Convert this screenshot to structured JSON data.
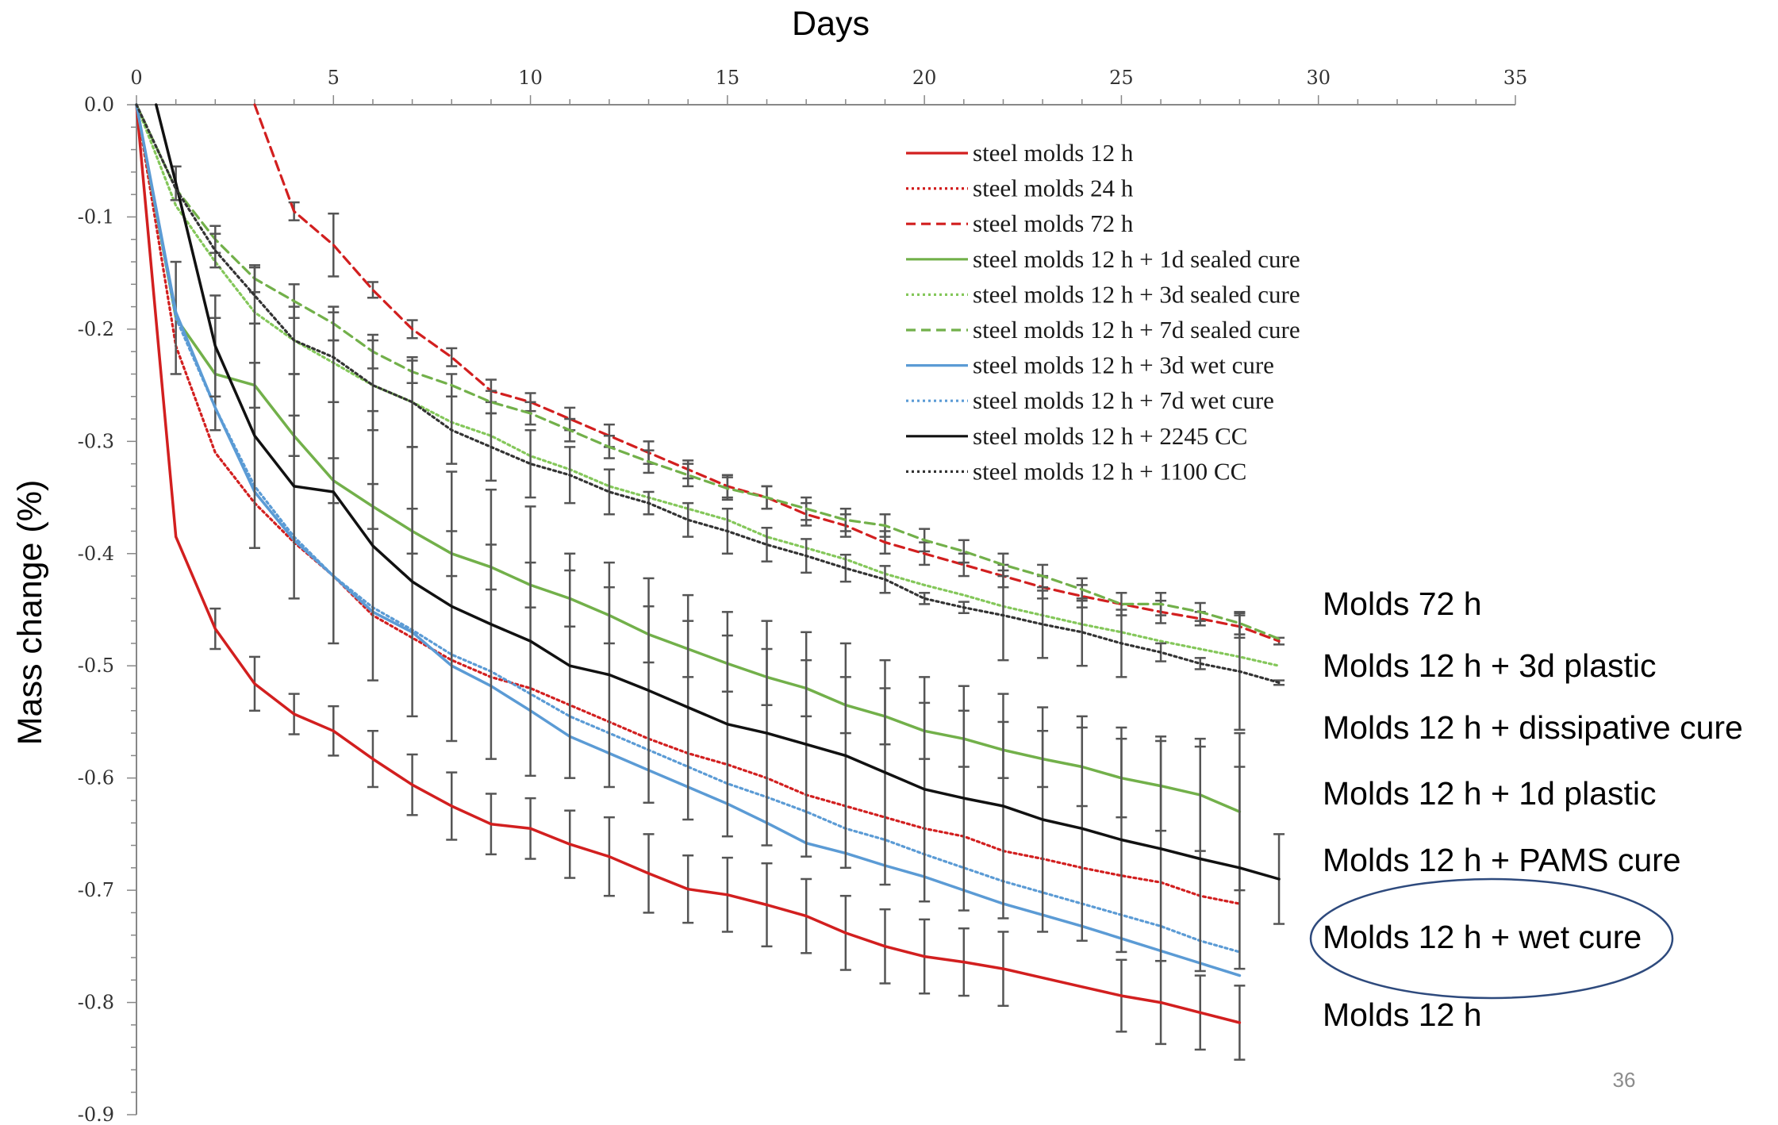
{
  "chart_data": {
    "type": "line",
    "xlabel": "Days",
    "ylabel": "Mass change (%)",
    "xlim": [
      0,
      35
    ],
    "ylim": [
      -0.9,
      0.0
    ],
    "x_ticks": [
      "0",
      "5",
      "10",
      "15",
      "20",
      "25",
      "30",
      "35"
    ],
    "y_ticks": [
      "0.0",
      "-0.1",
      "-0.2",
      "-0.3",
      "-0.4",
      "-0.5",
      "-0.6",
      "-0.7",
      "-0.8",
      "-0.9"
    ],
    "x_axis_position": "top",
    "grid": false,
    "legend_position": "upper-right",
    "series": [
      {
        "name": "steel molds 12 h",
        "color": "#d21f1f",
        "dash": "solid",
        "x": [
          0,
          1,
          2,
          3,
          4,
          5,
          6,
          7,
          8,
          9,
          10,
          11,
          12,
          13,
          14,
          15,
          16,
          17,
          18,
          19,
          20,
          21,
          22,
          23,
          24,
          25,
          26,
          27,
          28
        ],
        "y": [
          0,
          -0.385,
          -0.467,
          -0.516,
          -0.543,
          -0.558,
          -0.583,
          -0.606,
          -0.625,
          -0.641,
          -0.645,
          -0.659,
          -0.67,
          -0.685,
          -0.699,
          -0.704,
          -0.713,
          -0.723,
          -0.738,
          -0.75,
          -0.759,
          -0.764,
          -0.77,
          -0.778,
          -0.786,
          -0.794,
          -0.8,
          -0.809,
          -0.818
        ],
        "err": [
          0,
          0,
          0.018,
          0.024,
          0.018,
          0.022,
          0.025,
          0.027,
          0.03,
          0.027,
          0.027,
          0.03,
          0.035,
          0.035,
          0.03,
          0.033,
          0.037,
          0.033,
          0.033,
          0.033,
          0.033,
          0.03,
          0.033,
          0,
          0,
          0.032,
          0.037,
          0.033,
          0.033
        ]
      },
      {
        "name": "steel molds 24 h",
        "color": "#d21f1f",
        "dash": "dotted",
        "x": [
          0,
          1,
          2,
          3,
          4,
          5,
          6,
          7,
          8,
          9,
          10,
          11,
          12,
          13,
          14,
          15,
          16,
          17,
          18,
          19,
          20,
          21,
          22,
          23,
          24,
          25,
          26,
          27,
          28
        ],
        "y": [
          0,
          -0.215,
          -0.31,
          -0.355,
          -0.39,
          -0.42,
          -0.455,
          -0.475,
          -0.495,
          -0.51,
          -0.52,
          -0.535,
          -0.55,
          -0.565,
          -0.578,
          -0.588,
          -0.6,
          -0.615,
          -0.625,
          -0.635,
          -0.645,
          -0.652,
          -0.665,
          -0.672,
          -0.68,
          -0.687,
          -0.693,
          -0.705,
          -0.712
        ],
        "err": []
      },
      {
        "name": "steel molds 72 h",
        "color": "#d21f1f",
        "dash": "dashed",
        "x": [
          3,
          4,
          5,
          6,
          7,
          8,
          9,
          10,
          11,
          12,
          13,
          14,
          15,
          16,
          17,
          18,
          19,
          20,
          21,
          22,
          23,
          24,
          25,
          26,
          27,
          28,
          29
        ],
        "y": [
          0,
          -0.095,
          -0.125,
          -0.165,
          -0.2,
          -0.225,
          -0.255,
          -0.265,
          -0.28,
          -0.295,
          -0.31,
          -0.325,
          -0.34,
          -0.35,
          -0.365,
          -0.375,
          -0.39,
          -0.4,
          -0.41,
          -0.42,
          -0.43,
          -0.438,
          -0.445,
          -0.452,
          -0.458,
          -0.465,
          -0.478
        ],
        "err": [
          0,
          0.008,
          0.028,
          0.007,
          0.008,
          0.008,
          0.01,
          0.008,
          0.01,
          0.01,
          0.01,
          0.008,
          0.01,
          0.01,
          0.01,
          0.01,
          0.01,
          0.01,
          0.01,
          0.01,
          0.01,
          0.01,
          0,
          0.01,
          0.006,
          0.01,
          0.003
        ]
      },
      {
        "name": "steel molds 12 h + 1d sealed cure",
        "color": "#72b04a",
        "dash": "solid",
        "x": [
          0,
          1,
          2,
          3,
          4,
          5,
          6,
          7,
          8,
          9,
          10,
          11,
          12,
          13,
          14,
          15,
          16,
          17,
          18,
          19,
          20,
          21,
          22,
          23,
          24,
          25,
          26,
          27,
          28
        ],
        "y": [
          0,
          -0.19,
          -0.24,
          -0.25,
          -0.295,
          -0.335,
          -0.358,
          -0.38,
          -0.4,
          -0.412,
          -0.428,
          -0.44,
          -0.455,
          -0.472,
          -0.485,
          -0.498,
          -0.51,
          -0.52,
          -0.535,
          -0.545,
          -0.558,
          -0.565,
          -0.575,
          -0.583,
          -0.59,
          -0.6,
          -0.607,
          -0.615,
          -0.63
        ],
        "err": [
          0,
          0.05,
          0.05,
          0.02,
          0.018,
          0.02,
          0.02,
          0.02,
          0.02,
          0.02,
          0.02,
          0.025,
          0.025,
          0.025,
          0.025,
          0.025,
          0.025,
          0.025,
          0.025,
          0.025,
          0.025,
          0.025,
          0.025,
          0.025,
          0.035,
          0.035,
          0.04,
          0.05,
          0.07
        ]
      },
      {
        "name": "steel molds 12 h + 3d sealed cure",
        "color": "#84c75a",
        "dash": "dotted",
        "x": [
          0,
          1,
          2,
          3,
          4,
          5,
          6,
          7,
          8,
          9,
          10,
          11,
          12,
          13,
          14,
          15,
          16,
          17,
          18,
          19,
          20,
          21,
          22,
          23,
          24,
          25,
          26,
          27,
          28,
          29
        ],
        "y": [
          0,
          -0.09,
          -0.14,
          -0.185,
          -0.21,
          -0.23,
          -0.25,
          -0.265,
          -0.283,
          -0.295,
          -0.313,
          -0.325,
          -0.34,
          -0.35,
          -0.36,
          -0.37,
          -0.385,
          -0.395,
          -0.405,
          -0.418,
          -0.428,
          -0.437,
          -0.447,
          -0.455,
          -0.463,
          -0.47,
          -0.478,
          -0.485,
          -0.492,
          -0.5
        ],
        "err": []
      },
      {
        "name": "steel molds 12 h + 7d sealed cure",
        "color": "#72b04a",
        "dash": "dashed",
        "x": [
          0,
          1,
          2,
          3,
          4,
          5,
          6,
          7,
          8,
          9,
          10,
          11,
          12,
          13,
          14,
          15,
          16,
          17,
          18,
          19,
          20,
          21,
          22,
          23,
          24,
          25,
          26,
          27,
          28,
          29
        ],
        "y": [
          0,
          -0.075,
          -0.12,
          -0.155,
          -0.175,
          -0.195,
          -0.22,
          -0.238,
          -0.25,
          -0.265,
          -0.275,
          -0.29,
          -0.305,
          -0.318,
          -0.33,
          -0.342,
          -0.35,
          -0.36,
          -0.37,
          -0.375,
          -0.388,
          -0.398,
          -0.41,
          -0.42,
          -0.432,
          -0.445,
          -0.445,
          -0.452,
          -0.462,
          -0.476
        ],
        "err": [
          0,
          0,
          0.012,
          0.012,
          0.015,
          0.015,
          0.015,
          0.01,
          0.01,
          0.01,
          0.01,
          0.01,
          0.01,
          0.01,
          0.01,
          0.01,
          0.01,
          0.01,
          0.01,
          0.01,
          0.01,
          0.01,
          0.01,
          0.01,
          0.01,
          0.01,
          0.01,
          0.008,
          0.01,
          0
        ]
      },
      {
        "name": "steel molds 12 h + 3d wet cure",
        "color": "#5b9bd5",
        "dash": "solid",
        "x": [
          0,
          1,
          2,
          3,
          4,
          5,
          6,
          7,
          8,
          9,
          10,
          11,
          12,
          13,
          14,
          15,
          16,
          17,
          18,
          19,
          20,
          21,
          22,
          23,
          24,
          25,
          26,
          27,
          28
        ],
        "y": [
          0,
          -0.185,
          -0.27,
          -0.345,
          -0.388,
          -0.42,
          -0.452,
          -0.47,
          -0.5,
          -0.518,
          -0.54,
          -0.563,
          -0.578,
          -0.593,
          -0.608,
          -0.623,
          -0.64,
          -0.658,
          -0.667,
          -0.678,
          -0.688,
          -0.7,
          -0.712,
          -0.722,
          -0.732,
          -0.743,
          -0.754,
          -0.765,
          -0.776
        ],
        "err": []
      },
      {
        "name": "steel molds 12 h + 7d wet cure",
        "color": "#5b9bd5",
        "dash": "dotted",
        "x": [
          0,
          1,
          2,
          3,
          4,
          5,
          6,
          7,
          8,
          9,
          10,
          11,
          12,
          13,
          14,
          15,
          16,
          17,
          18,
          19,
          20,
          21,
          22,
          23,
          24,
          25,
          26,
          27,
          28
        ],
        "y": [
          0,
          -0.19,
          -0.27,
          -0.34,
          -0.385,
          -0.42,
          -0.448,
          -0.468,
          -0.49,
          -0.505,
          -0.525,
          -0.545,
          -0.56,
          -0.575,
          -0.59,
          -0.605,
          -0.617,
          -0.63,
          -0.645,
          -0.655,
          -0.668,
          -0.68,
          -0.692,
          -0.702,
          -0.712,
          -0.722,
          -0.732,
          -0.745,
          -0.755
        ],
        "err": []
      },
      {
        "name": "steel molds 12 h + 2245 CC",
        "color": "#111111",
        "dash": "solid",
        "x": [
          0.5,
          1,
          2,
          3,
          4,
          5,
          6,
          7,
          8,
          9,
          10,
          11,
          12,
          13,
          14,
          15,
          16,
          17,
          18,
          19,
          20,
          21,
          22,
          23,
          24,
          25,
          26,
          27,
          28,
          29
        ],
        "y": [
          0,
          -0.07,
          -0.215,
          -0.295,
          -0.34,
          -0.345,
          -0.393,
          -0.425,
          -0.447,
          -0.463,
          -0.478,
          -0.5,
          -0.508,
          -0.522,
          -0.537,
          -0.552,
          -0.56,
          -0.57,
          -0.58,
          -0.595,
          -0.61,
          -0.618,
          -0.625,
          -0.637,
          -0.645,
          -0.655,
          -0.663,
          -0.672,
          -0.68,
          -0.69
        ],
        "err": [
          0,
          0.015,
          0.045,
          0.1,
          0.1,
          0.135,
          0.12,
          0.12,
          0.12,
          0.12,
          0.12,
          0.1,
          0.1,
          0.1,
          0.1,
          0.1,
          0.1,
          0.1,
          0.1,
          0.1,
          0.1,
          0.1,
          0.1,
          0.1,
          0.1,
          0.1,
          0.1,
          0.1,
          0.09,
          0.04
        ]
      },
      {
        "name": "steel molds 12 h + 1100 CC",
        "color": "#333333",
        "dash": "dotted",
        "x": [
          0,
          1,
          2,
          3,
          4,
          5,
          6,
          7,
          8,
          9,
          10,
          11,
          12,
          13,
          14,
          15,
          16,
          17,
          18,
          19,
          20,
          21,
          22,
          23,
          24,
          25,
          26,
          27,
          28,
          29
        ],
        "y": [
          0,
          -0.075,
          -0.13,
          -0.17,
          -0.21,
          -0.225,
          -0.25,
          -0.265,
          -0.29,
          -0.305,
          -0.32,
          -0.33,
          -0.345,
          -0.355,
          -0.37,
          -0.38,
          -0.392,
          -0.402,
          -0.413,
          -0.423,
          -0.44,
          -0.448,
          -0.455,
          -0.463,
          -0.47,
          -0.48,
          -0.488,
          -0.498,
          -0.505,
          -0.515
        ],
        "err": [
          0,
          0,
          0.015,
          0.025,
          0.03,
          0.04,
          0.04,
          0.04,
          0.03,
          0.03,
          0.03,
          0.025,
          0.02,
          0.01,
          0.015,
          0.02,
          0.015,
          0.015,
          0.012,
          0.012,
          0.005,
          0.005,
          0.04,
          0.03,
          0.03,
          0.03,
          0.008,
          0.005,
          0.052,
          0.002
        ]
      }
    ],
    "annotations": [
      "Molds 72 h",
      "Molds 12 h + 3d plastic",
      "Molds 12 h + dissipative cure",
      "Molds 12 h + 1d plastic",
      "Molds 12 h + PAMS cure",
      "Molds 12 h + wet cure",
      "Molds 12 h"
    ],
    "highlighted_annotation": "Molds 12 h + wet cure"
  },
  "slide": {
    "page_number": "36"
  },
  "colors": {
    "axis": "#888888",
    "ellipse": "#2e4a7d",
    "errbar": "#555555"
  }
}
